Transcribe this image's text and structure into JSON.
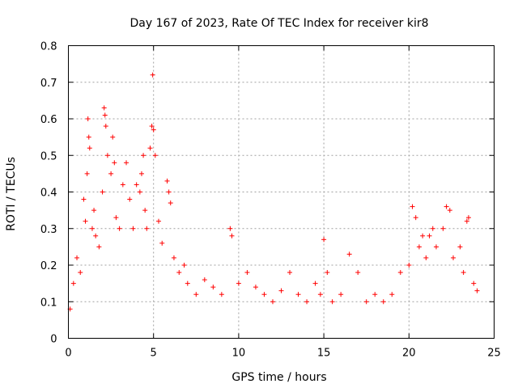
{
  "chart_data": {
    "type": "scatter",
    "title": "Day 167 of 2023, Rate Of TEC Index for receiver kir8",
    "xlabel": "GPS time / hours",
    "ylabel": "ROTI / TECUs",
    "xlim": [
      0,
      25
    ],
    "ylim": [
      0,
      0.8
    ],
    "xticks": [
      "0",
      "5",
      "10",
      "15",
      "20",
      "25"
    ],
    "yticks": [
      "0",
      "0.1",
      "0.2",
      "0.3",
      "0.4",
      "0.5",
      "0.6",
      "0.7",
      "0.8"
    ],
    "grid": true,
    "marker": "plus",
    "color": "#ff0000",
    "series": [
      {
        "name": "ROTI",
        "points": [
          [
            0.1,
            0.08
          ],
          [
            0.3,
            0.15
          ],
          [
            0.5,
            0.22
          ],
          [
            0.7,
            0.18
          ],
          [
            0.9,
            0.38
          ],
          [
            1.0,
            0.32
          ],
          [
            1.1,
            0.45
          ],
          [
            1.15,
            0.6
          ],
          [
            1.2,
            0.55
          ],
          [
            1.25,
            0.52
          ],
          [
            1.4,
            0.3
          ],
          [
            1.5,
            0.35
          ],
          [
            1.6,
            0.28
          ],
          [
            1.8,
            0.25
          ],
          [
            2.0,
            0.4
          ],
          [
            2.1,
            0.63
          ],
          [
            2.15,
            0.61
          ],
          [
            2.2,
            0.58
          ],
          [
            2.3,
            0.5
          ],
          [
            2.5,
            0.45
          ],
          [
            2.6,
            0.55
          ],
          [
            2.7,
            0.48
          ],
          [
            2.8,
            0.33
          ],
          [
            3.0,
            0.3
          ],
          [
            3.2,
            0.42
          ],
          [
            3.4,
            0.48
          ],
          [
            3.6,
            0.38
          ],
          [
            3.8,
            0.3
          ],
          [
            4.0,
            0.42
          ],
          [
            4.2,
            0.4
          ],
          [
            4.3,
            0.45
          ],
          [
            4.4,
            0.5
          ],
          [
            4.5,
            0.35
          ],
          [
            4.6,
            0.3
          ],
          [
            4.8,
            0.52
          ],
          [
            4.9,
            0.58
          ],
          [
            4.95,
            0.72
          ],
          [
            5.0,
            0.57
          ],
          [
            5.1,
            0.5
          ],
          [
            5.3,
            0.32
          ],
          [
            5.5,
            0.26
          ],
          [
            5.8,
            0.43
          ],
          [
            5.9,
            0.4
          ],
          [
            6.0,
            0.37
          ],
          [
            6.2,
            0.22
          ],
          [
            6.5,
            0.18
          ],
          [
            6.8,
            0.2
          ],
          [
            7.0,
            0.15
          ],
          [
            7.5,
            0.12
          ],
          [
            8.0,
            0.16
          ],
          [
            8.5,
            0.14
          ],
          [
            9.0,
            0.12
          ],
          [
            9.5,
            0.3
          ],
          [
            9.6,
            0.28
          ],
          [
            10.0,
            0.15
          ],
          [
            10.5,
            0.18
          ],
          [
            11.0,
            0.14
          ],
          [
            11.5,
            0.12
          ],
          [
            12.0,
            0.1
          ],
          [
            12.5,
            0.13
          ],
          [
            13.0,
            0.18
          ],
          [
            13.5,
            0.12
          ],
          [
            14.0,
            0.1
          ],
          [
            14.5,
            0.15
          ],
          [
            14.8,
            0.12
          ],
          [
            15.0,
            0.27
          ],
          [
            15.2,
            0.18
          ],
          [
            15.5,
            0.1
          ],
          [
            16.0,
            0.12
          ],
          [
            16.5,
            0.23
          ],
          [
            17.0,
            0.18
          ],
          [
            17.5,
            0.1
          ],
          [
            18.0,
            0.12
          ],
          [
            18.5,
            0.1
          ],
          [
            19.0,
            0.12
          ],
          [
            19.5,
            0.18
          ],
          [
            20.0,
            0.2
          ],
          [
            20.2,
            0.36
          ],
          [
            20.4,
            0.33
          ],
          [
            20.6,
            0.25
          ],
          [
            20.8,
            0.28
          ],
          [
            21.0,
            0.22
          ],
          [
            21.2,
            0.28
          ],
          [
            21.4,
            0.3
          ],
          [
            21.6,
            0.25
          ],
          [
            22.0,
            0.3
          ],
          [
            22.2,
            0.36
          ],
          [
            22.4,
            0.35
          ],
          [
            22.6,
            0.22
          ],
          [
            23.0,
            0.25
          ],
          [
            23.2,
            0.18
          ],
          [
            23.4,
            0.32
          ],
          [
            23.5,
            0.33
          ],
          [
            23.8,
            0.15
          ],
          [
            24.0,
            0.13
          ]
        ]
      }
    ]
  }
}
